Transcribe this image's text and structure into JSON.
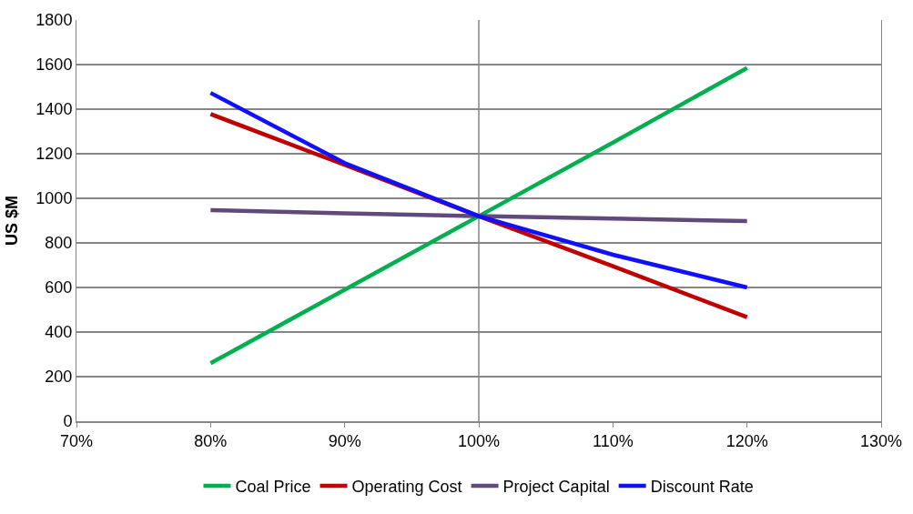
{
  "chart_data": {
    "type": "line",
    "ylabel": "US $M",
    "x": [
      80,
      90,
      100,
      110,
      120
    ],
    "series": [
      {
        "name": "Coal Price",
        "color": "#00b050",
        "values": [
          260,
          590,
          920,
          1250,
          1585
        ]
      },
      {
        "name": "Operating Cost",
        "color": "#c00000",
        "values": [
          1378,
          1150,
          920,
          695,
          467
        ]
      },
      {
        "name": "Project Capital",
        "color": "#604a7b",
        "values": [
          947,
          933,
          920,
          909,
          898
        ]
      },
      {
        "name": "Discount Rate",
        "color": "#1010ff",
        "values": [
          1473,
          1158,
          920,
          747,
          600
        ]
      }
    ],
    "xlim": [
      70,
      130
    ],
    "xticks": [
      {
        "value": 70,
        "label": "70%"
      },
      {
        "value": 80,
        "label": "80%"
      },
      {
        "value": 90,
        "label": "90%"
      },
      {
        "value": 100,
        "label": "100%"
      },
      {
        "value": 110,
        "label": "110%"
      },
      {
        "value": 120,
        "label": "120%"
      },
      {
        "value": 130,
        "label": "130%"
      }
    ],
    "ylim": [
      0,
      1800
    ],
    "yticks": [
      0,
      200,
      400,
      600,
      800,
      1000,
      1200,
      1400,
      1600,
      1800
    ],
    "ref_lines": [
      {
        "axis": "x",
        "value": 100,
        "color": "#868686"
      }
    ],
    "grid": "y",
    "legend": "bottom",
    "marker": "none",
    "line_style": "solid"
  }
}
